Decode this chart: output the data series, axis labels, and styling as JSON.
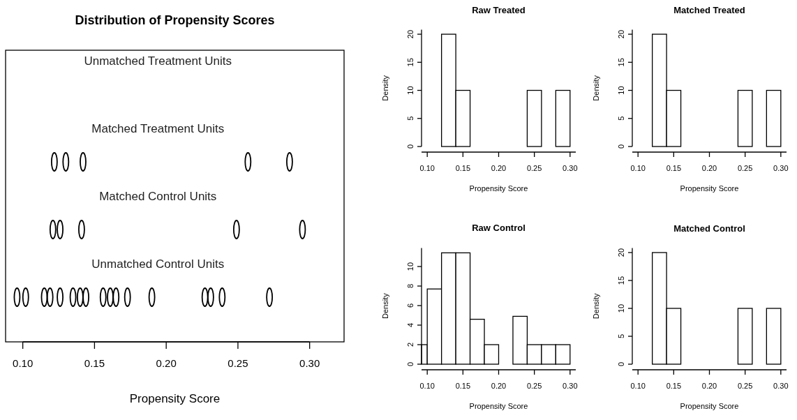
{
  "chart_data": [
    {
      "type": "scatter",
      "orientation": "horizontal",
      "title": "Distribution of Propensity Scores",
      "xlabel": "Propensity Score",
      "xlim": [
        0.088,
        0.324
      ],
      "xticks": [
        {
          "value": 0.1,
          "label": "0.10"
        },
        {
          "value": 0.15,
          "label": "0.15"
        },
        {
          "value": 0.2,
          "label": "0.20"
        },
        {
          "value": 0.25,
          "label": "0.25"
        },
        {
          "value": 0.3,
          "label": "0.30"
        }
      ],
      "marker": "circle",
      "categories": [
        "Unmatched Treatment Units",
        "Matched Treatment Units",
        "Matched Control Units",
        "Unmatched Control Units"
      ],
      "series": [
        {
          "color": "#000000",
          "values": [
            null,
            0.122,
            0.121,
            0.096
          ]
        },
        {
          "color": "#000000",
          "values": [
            null,
            0.13,
            0.126,
            0.102
          ]
        },
        {
          "color": "#000000",
          "values": [
            null,
            0.142,
            0.141,
            0.115
          ]
        },
        {
          "color": "#000000",
          "values": [
            null,
            0.257,
            0.249,
            0.119
          ]
        },
        {
          "color": "#000000",
          "values": [
            null,
            0.286,
            0.295,
            0.126
          ]
        },
        {
          "color": "#000000",
          "values": [
            null,
            null,
            null,
            0.135
          ]
        },
        {
          "color": "#000000",
          "values": [
            null,
            null,
            null,
            0.14
          ]
        },
        {
          "color": "#000000",
          "values": [
            null,
            null,
            null,
            0.144
          ]
        },
        {
          "color": "#000000",
          "values": [
            null,
            null,
            null,
            0.156
          ]
        },
        {
          "color": "#000000",
          "values": [
            null,
            null,
            null,
            0.161
          ]
        },
        {
          "color": "#000000",
          "values": [
            null,
            null,
            null,
            0.165
          ]
        },
        {
          "color": "#000000",
          "values": [
            null,
            null,
            null,
            0.173
          ]
        },
        {
          "color": "#000000",
          "values": [
            null,
            null,
            null,
            0.19
          ]
        },
        {
          "color": "#000000",
          "values": [
            null,
            null,
            null,
            0.227
          ]
        },
        {
          "color": "#000000",
          "values": [
            null,
            null,
            null,
            0.231
          ]
        },
        {
          "color": "#000000",
          "values": [
            null,
            null,
            null,
            0.239
          ]
        },
        {
          "color": "#000000",
          "values": [
            null,
            null,
            null,
            0.272
          ]
        }
      ]
    },
    {
      "type": "histogram",
      "title": "Raw Treated",
      "xlabel": "Propensity Score",
      "ylabel": "Density",
      "color": "#ffffff",
      "bins": [
        0.12,
        0.14,
        0.16,
        0.18,
        0.2,
        0.22,
        0.24,
        0.26,
        0.28,
        0.3
      ],
      "values": [
        20,
        10,
        0,
        0,
        0,
        0,
        10,
        0,
        10
      ],
      "xlim": [
        0.092,
        0.308
      ],
      "xticks": [
        {
          "value": 0.1,
          "label": "0.10"
        },
        {
          "value": 0.15,
          "label": "0.15"
        },
        {
          "value": 0.2,
          "label": "0.20"
        },
        {
          "value": 0.25,
          "label": "0.25"
        },
        {
          "value": 0.3,
          "label": "0.30"
        }
      ],
      "ylim": [
        0,
        20.8
      ],
      "yticks": [
        0,
        5,
        10,
        15,
        20
      ]
    },
    {
      "type": "histogram",
      "title": "Matched Treated",
      "xlabel": "Propensity Score",
      "ylabel": "Density",
      "color": "#ffffff",
      "bins": [
        0.12,
        0.14,
        0.16,
        0.18,
        0.2,
        0.22,
        0.24,
        0.26,
        0.28,
        0.3
      ],
      "values": [
        20,
        10,
        0,
        0,
        0,
        0,
        10,
        0,
        10
      ],
      "xlim": [
        0.092,
        0.308
      ],
      "xticks": [
        {
          "value": 0.1,
          "label": "0.10"
        },
        {
          "value": 0.15,
          "label": "0.15"
        },
        {
          "value": 0.2,
          "label": "0.20"
        },
        {
          "value": 0.25,
          "label": "0.25"
        },
        {
          "value": 0.3,
          "label": "0.30"
        }
      ],
      "ylim": [
        0,
        20.8
      ],
      "yticks": [
        0,
        5,
        10,
        15,
        20
      ]
    },
    {
      "type": "histogram",
      "title": "Raw Control",
      "xlabel": "Propensity Score",
      "ylabel": "Density",
      "color": "#ffffff",
      "bins": [
        0.092,
        0.1,
        0.12,
        0.14,
        0.16,
        0.18,
        0.2,
        0.22,
        0.24,
        0.26,
        0.28,
        0.3
      ],
      "values": [
        2,
        7.7,
        11.4,
        11.4,
        4.6,
        2,
        0,
        4.9,
        2,
        2,
        2
      ],
      "xlim": [
        0.092,
        0.308
      ],
      "xticks": [
        {
          "value": 0.1,
          "label": "0.10"
        },
        {
          "value": 0.15,
          "label": "0.15"
        },
        {
          "value": 0.2,
          "label": "0.20"
        },
        {
          "value": 0.25,
          "label": "0.25"
        },
        {
          "value": 0.3,
          "label": "0.30"
        }
      ],
      "ylim": [
        0,
        11.9
      ],
      "yticks": [
        0,
        2,
        4,
        6,
        8,
        10
      ]
    },
    {
      "type": "histogram",
      "title": "Matched Control",
      "xlabel": "Propensity Score",
      "ylabel": "Density",
      "color": "#ffffff",
      "bins": [
        0.12,
        0.14,
        0.16,
        0.18,
        0.2,
        0.22,
        0.24,
        0.26,
        0.28,
        0.3
      ],
      "values": [
        20,
        10,
        0,
        0,
        0,
        0,
        10,
        0,
        10
      ],
      "xlim": [
        0.092,
        0.308
      ],
      "xticks": [
        {
          "value": 0.1,
          "label": "0.10"
        },
        {
          "value": 0.15,
          "label": "0.15"
        },
        {
          "value": 0.2,
          "label": "0.20"
        },
        {
          "value": 0.25,
          "label": "0.25"
        },
        {
          "value": 0.3,
          "label": "0.30"
        }
      ],
      "ylim": [
        0,
        20.8
      ],
      "yticks": [
        0,
        5,
        10,
        15,
        20
      ]
    }
  ]
}
